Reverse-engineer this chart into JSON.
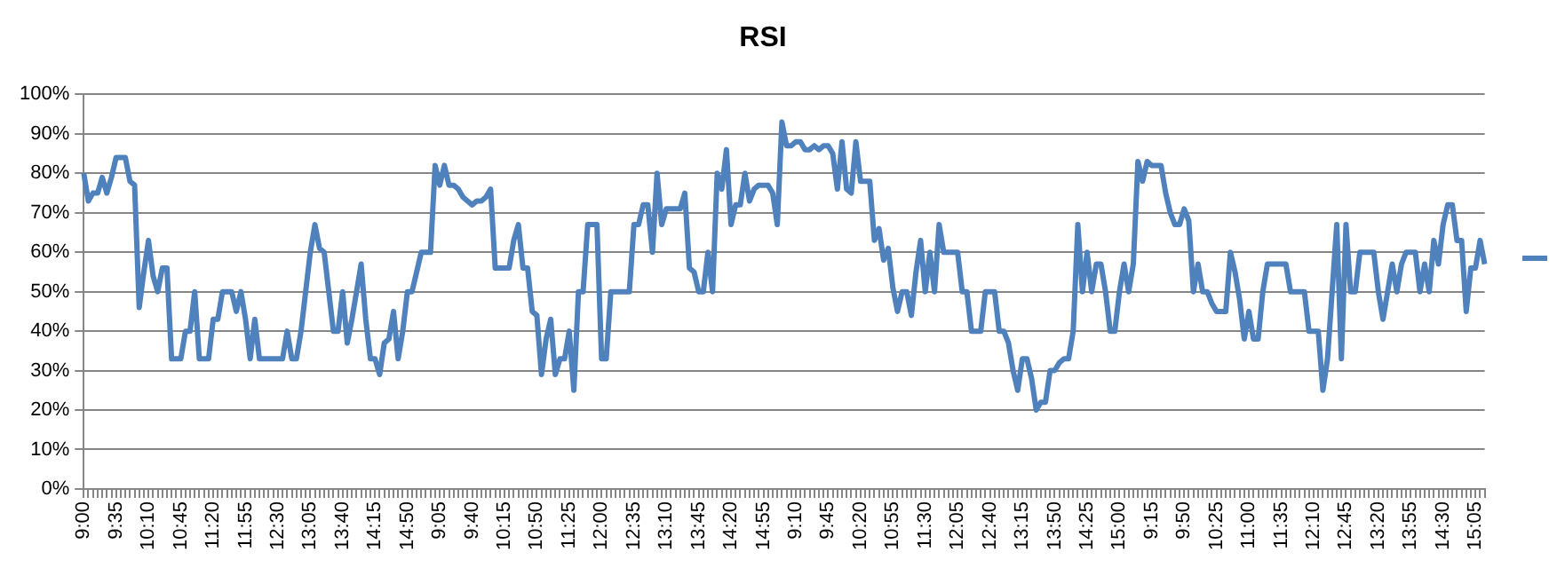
{
  "chart_data": {
    "type": "line",
    "title": "RSI",
    "categories": [
      "9:00",
      null,
      null,
      null,
      null,
      null,
      null,
      "9:35",
      null,
      null,
      null,
      null,
      null,
      null,
      "10:10",
      null,
      null,
      null,
      null,
      null,
      null,
      "10:45",
      null,
      null,
      null,
      null,
      null,
      null,
      "11:20",
      null,
      null,
      null,
      null,
      null,
      null,
      "11:55",
      null,
      null,
      null,
      null,
      null,
      null,
      "12:30",
      null,
      null,
      null,
      null,
      null,
      null,
      "13:05",
      null,
      null,
      null,
      null,
      null,
      null,
      "13:40",
      null,
      null,
      null,
      null,
      null,
      null,
      "14:15",
      null,
      null,
      null,
      null,
      null,
      null,
      "14:50",
      null,
      null,
      null,
      null,
      null,
      null,
      "9:05",
      null,
      null,
      null,
      null,
      null,
      null,
      "9:40",
      null,
      null,
      null,
      null,
      null,
      null,
      "10:15",
      null,
      null,
      null,
      null,
      null,
      null,
      "10:50",
      null,
      null,
      null,
      null,
      null,
      null,
      "11:25",
      null,
      null,
      null,
      null,
      null,
      null,
      "12:00",
      null,
      null,
      null,
      null,
      null,
      null,
      "12:35",
      null,
      null,
      null,
      null,
      null,
      null,
      "13:10",
      null,
      null,
      null,
      null,
      null,
      null,
      "13:45",
      null,
      null,
      null,
      null,
      null,
      null,
      "14:20",
      null,
      null,
      null,
      null,
      null,
      null,
      "14:55",
      null,
      null,
      null,
      null,
      null,
      null,
      "9:10",
      null,
      null,
      null,
      null,
      null,
      null,
      "9:45",
      null,
      null,
      null,
      null,
      null,
      null,
      "10:20",
      null,
      null,
      null,
      null,
      null,
      null,
      "10:55",
      null,
      null,
      null,
      null,
      null,
      null,
      "11:30",
      null,
      null,
      null,
      null,
      null,
      null,
      "12:05",
      null,
      null,
      null,
      null,
      null,
      null,
      "12:40",
      null,
      null,
      null,
      null,
      null,
      null,
      "13:15",
      null,
      null,
      null,
      null,
      null,
      null,
      "13:50",
      null,
      null,
      null,
      null,
      null,
      null,
      "14:25",
      null,
      null,
      null,
      null,
      null,
      null,
      "15:00",
      null,
      null,
      null,
      null,
      null,
      null,
      "9:15",
      null,
      null,
      null,
      null,
      null,
      null,
      "9:50",
      null,
      null,
      null,
      null,
      null,
      null,
      "10:25",
      null,
      null,
      null,
      null,
      null,
      null,
      "11:00",
      null,
      null,
      null,
      null,
      null,
      null,
      "11:35",
      null,
      null,
      null,
      null,
      null,
      null,
      "12:10",
      null,
      null,
      null,
      null,
      null,
      null,
      "12:45",
      null,
      null,
      null,
      null,
      null,
      null,
      "13:20",
      null,
      null,
      null,
      null,
      null,
      null,
      "13:55",
      null,
      null,
      null,
      null,
      null,
      null,
      "14:30",
      null,
      null,
      null,
      null,
      null,
      null,
      "15:05",
      null,
      null
    ],
    "series": [
      {
        "color": "#4f81bd",
        "values": [
          80,
          73,
          75,
          75,
          79,
          75,
          79,
          84,
          84,
          84,
          78,
          77,
          46,
          55,
          63,
          54,
          50,
          56,
          56,
          33,
          33,
          33,
          40,
          40,
          50,
          33,
          33,
          33,
          43,
          43,
          50,
          50,
          50,
          45,
          50,
          43,
          33,
          43,
          33,
          33,
          33,
          33,
          33,
          33,
          40,
          33,
          33,
          40,
          50,
          60,
          67,
          61,
          60,
          50,
          40,
          40,
          50,
          37,
          43,
          50,
          57,
          43,
          33,
          33,
          29,
          37,
          38,
          45,
          33,
          40,
          50,
          50,
          55,
          60,
          60,
          60,
          82,
          77,
          82,
          77,
          77,
          76,
          74,
          73,
          72,
          73,
          73,
          74,
          76,
          56,
          56,
          56,
          56,
          63,
          67,
          56,
          56,
          45,
          44,
          29,
          38,
          43,
          29,
          33,
          33,
          40,
          25,
          50,
          50,
          67,
          67,
          67,
          33,
          33,
          50,
          50,
          50,
          50,
          50,
          67,
          67,
          72,
          72,
          60,
          80,
          67,
          71,
          71,
          71,
          71,
          75,
          56,
          55,
          50,
          50,
          60,
          50,
          80,
          76,
          86,
          67,
          72,
          72,
          80,
          73,
          76,
          77,
          77,
          77,
          75,
          67,
          93,
          87,
          87,
          88,
          88,
          86,
          86,
          87,
          86,
          87,
          87,
          85,
          76,
          88,
          76,
          75,
          88,
          78,
          78,
          78,
          63,
          66,
          58,
          61,
          51,
          45,
          50,
          50,
          44,
          55,
          63,
          50,
          60,
          50,
          67,
          60,
          60,
          60,
          60,
          50,
          50,
          40,
          40,
          40,
          50,
          50,
          50,
          40,
          40,
          37,
          30,
          25,
          33,
          33,
          28,
          20,
          22,
          22,
          30,
          30,
          32,
          33,
          33,
          40,
          67,
          50,
          60,
          50,
          57,
          57,
          50,
          40,
          40,
          50,
          57,
          50,
          57,
          83,
          78,
          83,
          82,
          82,
          82,
          75,
          70,
          67,
          67,
          71,
          68,
          50,
          57,
          50,
          50,
          47,
          45,
          45,
          45,
          60,
          55,
          48,
          38,
          45,
          38,
          38,
          50,
          57,
          57,
          57,
          57,
          57,
          50,
          50,
          50,
          50,
          40,
          40,
          40,
          25,
          33,
          50,
          67,
          33,
          67,
          50,
          50,
          60,
          60,
          60,
          60,
          50,
          43,
          50,
          57,
          50,
          57,
          60,
          60,
          60,
          50,
          57,
          50,
          63,
          57,
          67,
          72,
          72,
          63,
          63,
          45,
          56,
          56,
          63,
          57
        ]
      }
    ],
    "ylim": [
      0,
      100
    ],
    "yticks": [
      {
        "value": 0,
        "label": "0%"
      },
      {
        "value": 10,
        "label": "10%"
      },
      {
        "value": 20,
        "label": "20%"
      },
      {
        "value": 30,
        "label": "30%"
      },
      {
        "value": 40,
        "label": "40%"
      },
      {
        "value": 50,
        "label": "50%"
      },
      {
        "value": 60,
        "label": "60%"
      },
      {
        "value": 70,
        "label": "70%"
      },
      {
        "value": 80,
        "label": "80%"
      },
      {
        "value": 90,
        "label": "90%"
      },
      {
        "value": 100,
        "label": "100%"
      }
    ],
    "grid": "y",
    "marker": "none",
    "line_style": "solid"
  }
}
